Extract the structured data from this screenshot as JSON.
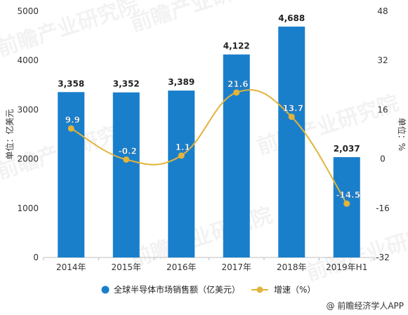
{
  "chart_data": {
    "type": "bar",
    "categories": [
      "2014年",
      "2015年",
      "2016年",
      "2017年",
      "2018年",
      "2019年H1"
    ],
    "series": [
      {
        "name": "全球半导体市场销售额（亿美元）",
        "type": "bar",
        "axis": "left",
        "color": "#1a7fcb",
        "values": [
          3358,
          3352,
          3389,
          4122,
          4688,
          2037
        ],
        "labels": [
          "3,358",
          "3,352",
          "3,389",
          "4,122",
          "4,688",
          "2,037"
        ]
      },
      {
        "name": "增速（%）",
        "type": "line",
        "axis": "right",
        "color": "#e3b33a",
        "values": [
          9.9,
          -0.2,
          1.1,
          21.6,
          13.7,
          -14.5
        ],
        "labels": [
          "9.9",
          "-0.2",
          "1.1",
          "21.6",
          "13.7",
          "-14.5"
        ]
      }
    ],
    "ylabel": "单位：亿美元",
    "ylim": [
      0,
      5000
    ],
    "yticks": [
      0,
      1000,
      2000,
      3000,
      4000,
      5000
    ],
    "y2label": "单位：%",
    "y2lim": [
      -32,
      48
    ],
    "y2ticks": [
      -32,
      -16,
      0,
      16,
      32,
      48
    ],
    "grid": false,
    "legend_position": "bottom",
    "source": "@ 前瞻经济学人APP"
  },
  "watermark": "前瞻产业研究院"
}
